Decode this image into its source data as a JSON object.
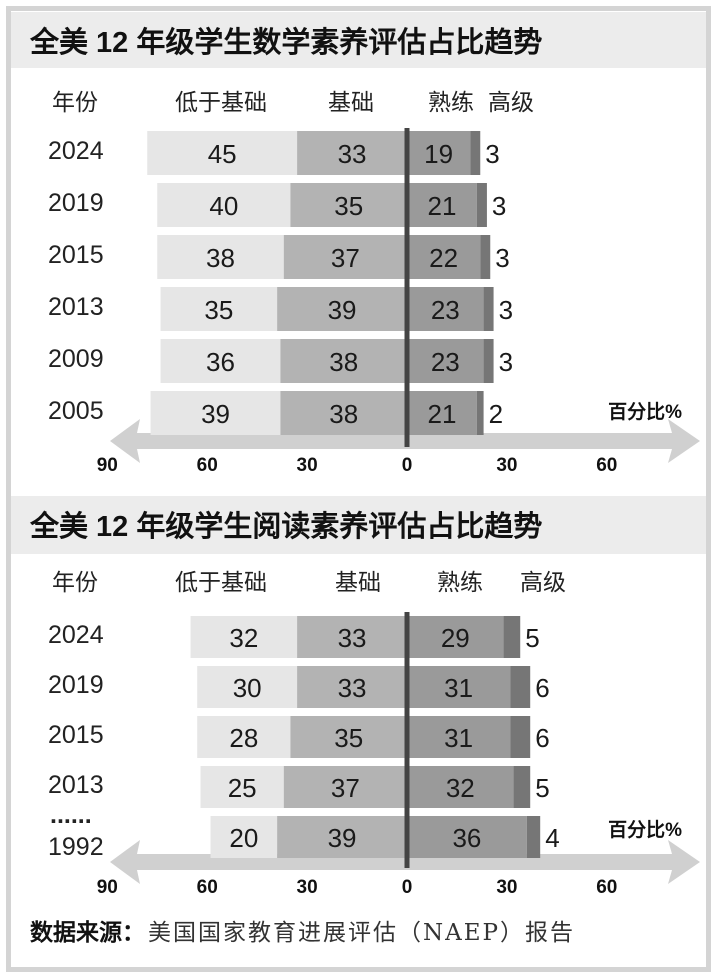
{
  "colors": {
    "below_basic": "#e6e6e6",
    "basic": "#b3b3b3",
    "proficient": "#9a9a9a",
    "advanced": "#767676",
    "axis": "#d0d0d0",
    "zero_line": "#444444",
    "title_band": "#ececec"
  },
  "chart_data": [
    {
      "type": "bar",
      "orientation": "horizontal-diverging-stacked",
      "title": "全美 12 年级学生数学素养评估占比趋势",
      "headers": {
        "year": "年份",
        "below_basic": "低于基础",
        "basic": "基础",
        "proficient": "熟练",
        "advanced": "高级"
      },
      "categories": [
        "2024",
        "2019",
        "2015",
        "2013",
        "2009",
        "2005"
      ],
      "series": [
        {
          "name": "低于基础",
          "side": "left",
          "values": [
            45,
            40,
            38,
            35,
            36,
            39
          ]
        },
        {
          "name": "基础",
          "side": "left",
          "values": [
            33,
            35,
            37,
            39,
            38,
            38
          ]
        },
        {
          "name": "熟练",
          "side": "right",
          "values": [
            19,
            21,
            22,
            23,
            23,
            21
          ]
        },
        {
          "name": "高级",
          "side": "right",
          "values": [
            3,
            3,
            3,
            3,
            3,
            2
          ]
        }
      ],
      "axis_ticks": {
        "left": [
          "90",
          "60",
          "30"
        ],
        "zero": "0",
        "right": [
          "30",
          "60"
        ]
      },
      "xlim": [
        -90,
        80
      ],
      "unit": "百分比%"
    },
    {
      "type": "bar",
      "orientation": "horizontal-diverging-stacked",
      "title": "全美 12 年级学生阅读素养评估占比趋势",
      "headers": {
        "year": "年份",
        "below_basic": "低于基础",
        "basic": "基础",
        "proficient": "熟练",
        "advanced": "高级"
      },
      "categories": [
        "2024",
        "2019",
        "2015",
        "2013",
        "1992"
      ],
      "ellipsis": "......",
      "series": [
        {
          "name": "低于基础",
          "side": "left",
          "values": [
            32,
            30,
            28,
            25,
            20
          ]
        },
        {
          "name": "基础",
          "side": "left",
          "values": [
            33,
            33,
            35,
            37,
            39
          ]
        },
        {
          "name": "熟练",
          "side": "right",
          "values": [
            29,
            31,
            31,
            32,
            36
          ]
        },
        {
          "name": "高级",
          "side": "right",
          "values": [
            5,
            6,
            6,
            5,
            4
          ]
        }
      ],
      "axis_ticks": {
        "left": [
          "90",
          "60",
          "30"
        ],
        "zero": "0",
        "right": [
          "30",
          "60"
        ]
      },
      "xlim": [
        -90,
        80
      ],
      "unit": "百分比%"
    }
  ],
  "source": {
    "label": "数据来源：",
    "text": "美国国家教育进展评估（NAEP）报告"
  }
}
